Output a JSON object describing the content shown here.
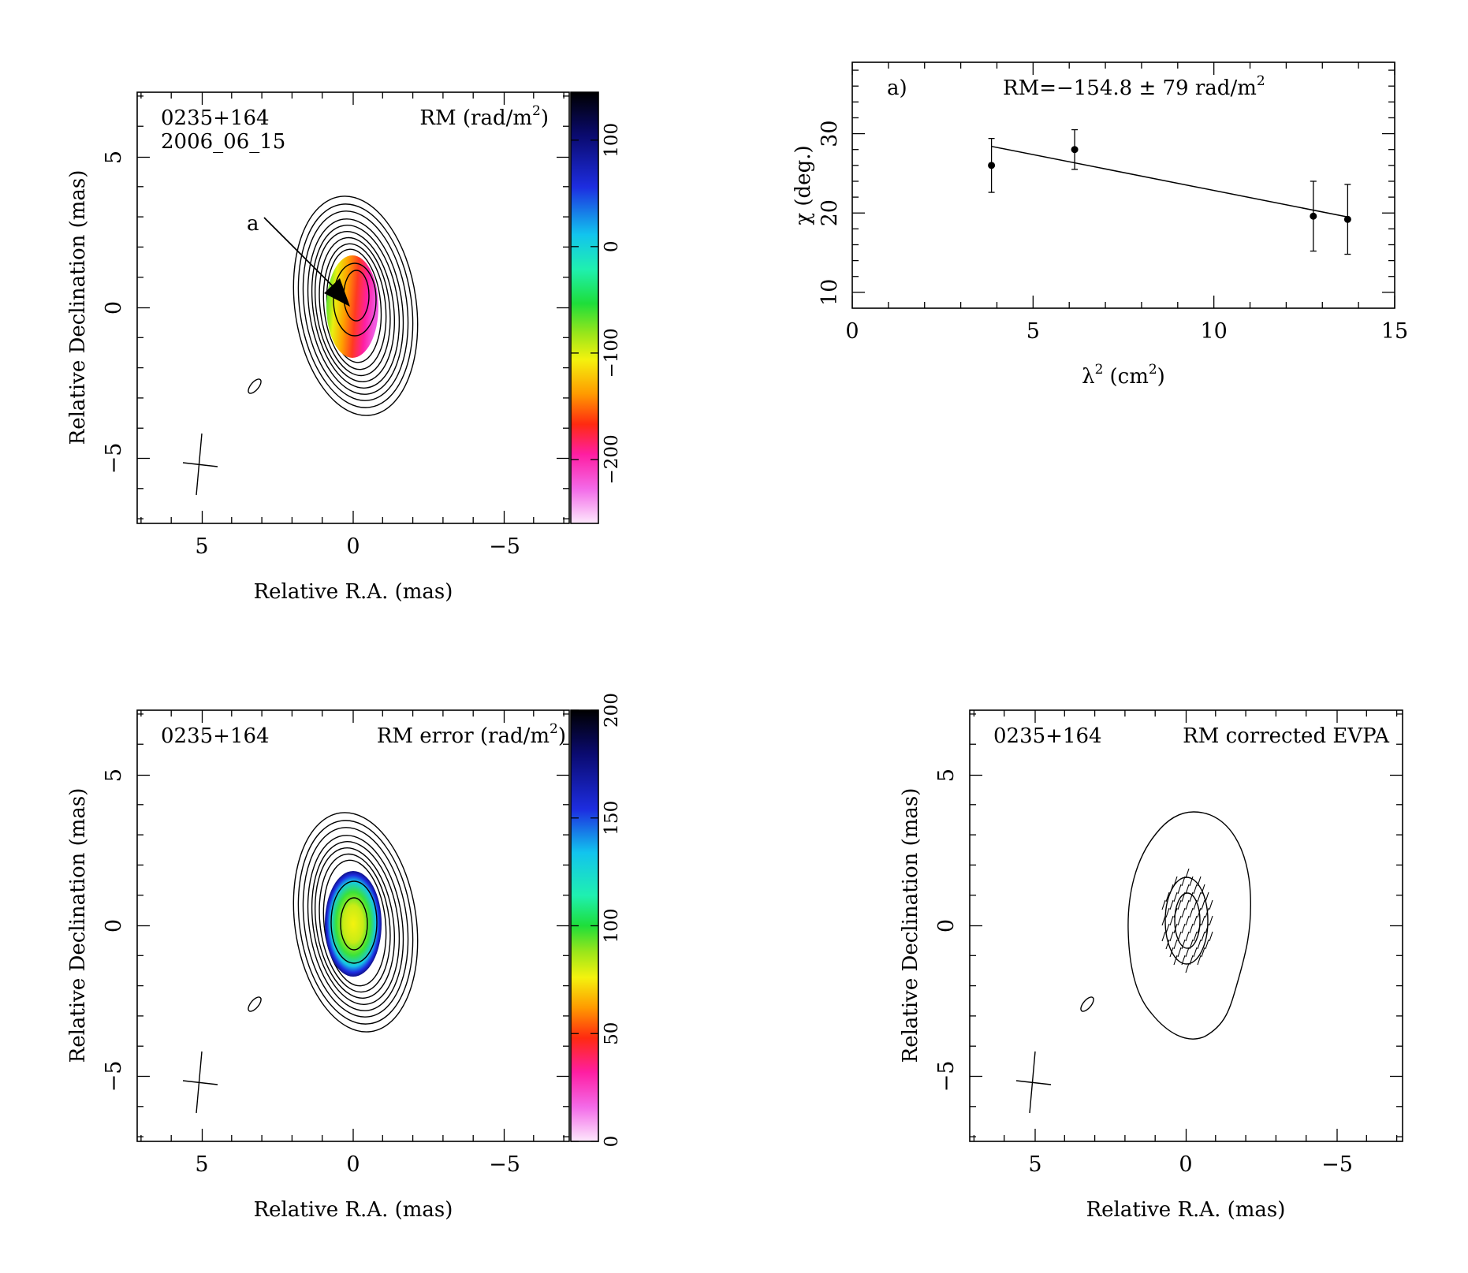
{
  "source": "0235+164",
  "epoch": "2006_06_15",
  "axes": {
    "ra_label": "Relative R.A. (mas)",
    "dec_label": "Relative Declination (mas)",
    "map_ticks": [
      5,
      0,
      -5
    ],
    "map_tick_labels": [
      "5",
      "0",
      "−5"
    ]
  },
  "panels": {
    "rm_map": {
      "label": "RM (rad/m",
      "label_sup": "2",
      "label_close": ")",
      "marker": "a",
      "colorbar": {
        "range": [
          -260,
          145
        ],
        "ticks": [
          100,
          0,
          -100,
          -200
        ],
        "tick_labels": [
          "100",
          "0",
          "−100",
          "−200"
        ]
      }
    },
    "rm_error_map": {
      "label": "RM error (rad/m",
      "label_sup": "2",
      "label_close": ")",
      "colorbar": {
        "range": [
          0,
          200
        ],
        "ticks": [
          0,
          50,
          100,
          150,
          200
        ],
        "tick_labels": [
          "0",
          "50",
          "100",
          "150",
          "200"
        ]
      }
    },
    "evpa_map": {
      "label": "RM corrected EVPA"
    }
  },
  "chart_data": {
    "type": "scatter",
    "panel_letter": "a)",
    "annotation": "RM=−154.8 ± 79 rad/m",
    "annotation_sup": "2",
    "xlabel": "λ",
    "xlabel_sup": "2",
    "xlabel_unit": "(cm",
    "xlabel_unit_sup": "2",
    "xlabel_close": ")",
    "ylabel": "χ (deg.)",
    "xlim": [
      0,
      15
    ],
    "ylim": [
      8,
      39
    ],
    "xticks": [
      0,
      5,
      10,
      15
    ],
    "yticks": [
      10,
      20,
      30
    ],
    "series": [
      {
        "x": [
          3.85,
          6.15,
          12.75,
          13.7
        ],
        "y": [
          26,
          28,
          19.6,
          19.2
        ],
        "yerr": [
          3.4,
          2.5,
          4.4,
          4.4
        ]
      }
    ],
    "fit": {
      "x": [
        3.85,
        13.7
      ],
      "y": [
        28.4,
        19.5
      ]
    },
    "grid": false
  }
}
